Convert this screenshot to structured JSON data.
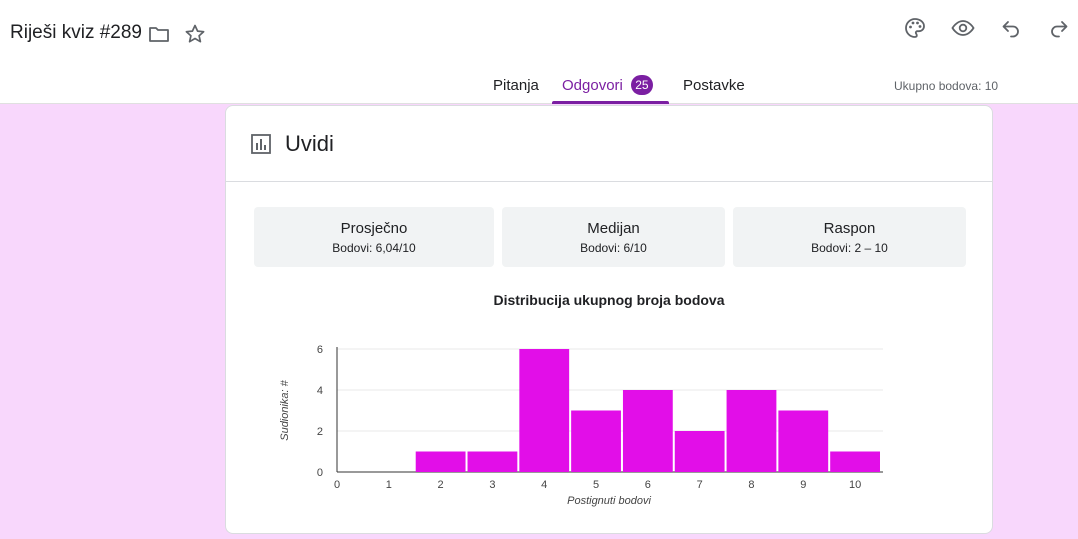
{
  "header": {
    "title": "Riješi kviz #289",
    "icons": [
      "folder-icon",
      "star-icon",
      "palette-icon",
      "preview-icon",
      "undo-icon",
      "redo-icon"
    ]
  },
  "tabs": [
    {
      "label": "Pitanja"
    },
    {
      "label": "Odgovori",
      "badge": "25"
    },
    {
      "label": "Postavke"
    }
  ],
  "total_points": "Ukupno bodova: 10",
  "insights": {
    "title": "Uvidi",
    "stats": [
      {
        "title": "Prosječno",
        "value": "Bodovi: 6,04/10"
      },
      {
        "title": "Medijan",
        "value": "Bodovi: 6/10"
      },
      {
        "title": "Raspon",
        "value": "Bodovi: 2 – 10"
      }
    ]
  },
  "colors": {
    "accent": "#7b1fa2",
    "bar": "#e20ee8",
    "background": "#f8d7fc"
  },
  "chart_data": {
    "type": "bar",
    "title": "Distribucija ukupnog broja bodova",
    "xlabel": "Postignuti bodovi",
    "ylabel": "Sudionika: #",
    "categories": [
      "0",
      "1",
      "2",
      "3",
      "4",
      "5",
      "6",
      "7",
      "8",
      "9",
      "10"
    ],
    "values": [
      0,
      0,
      1,
      1,
      6,
      3,
      4,
      2,
      4,
      3,
      1
    ],
    "yticks": [
      "0",
      "2",
      "4",
      "6"
    ],
    "ylim": [
      0,
      6
    ],
    "grid": true
  }
}
